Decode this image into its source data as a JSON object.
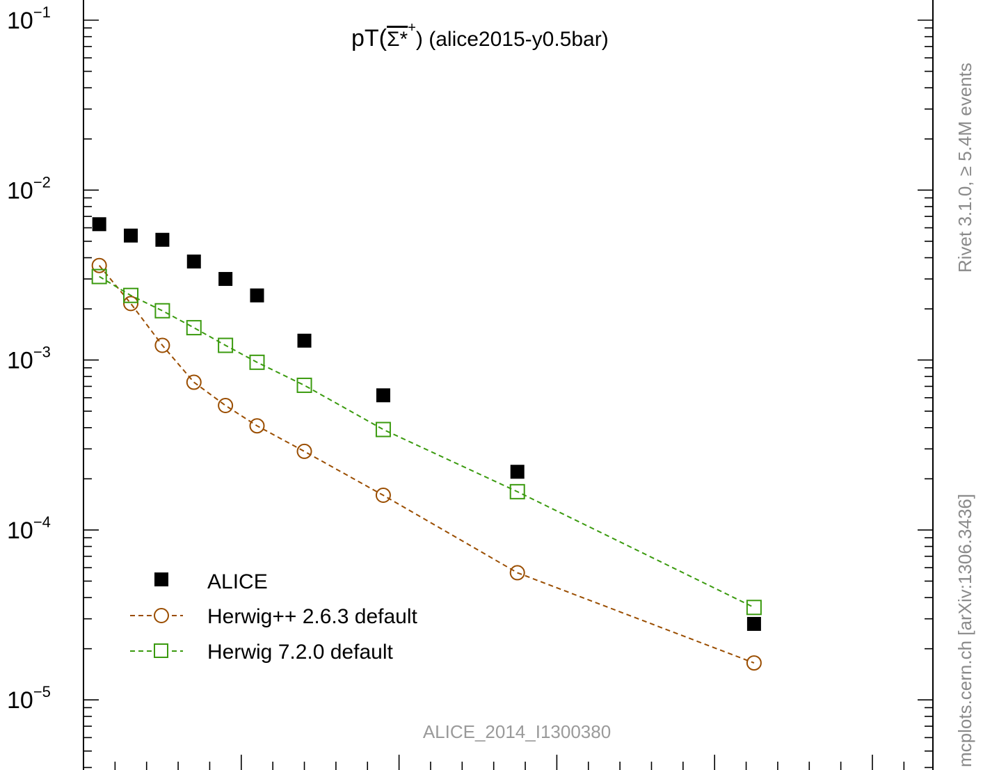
{
  "chart_data": {
    "type": "scatter",
    "title": "pT(Σ*⁺) (alice2015-y0.5bar)",
    "title_main": "pT(",
    "title_particle": "Σ*",
    "title_superscript": "+",
    "title_tail": ") (alice2015-y0.5bar)",
    "xlabel": "",
    "ylabel": "",
    "y_scale": "log",
    "ylim": [
      4e-06,
      0.12
    ],
    "xlim": [
      0.0,
      5.3
    ],
    "y_tick_labels": [
      {
        "value": 0.1,
        "base": "10",
        "exp": "−1"
      },
      {
        "value": 0.01,
        "base": "10",
        "exp": "−2"
      },
      {
        "value": 0.001,
        "base": "10",
        "exp": "−3"
      },
      {
        "value": 0.0001,
        "base": "10",
        "exp": "−4"
      },
      {
        "value": 1e-05,
        "base": "10",
        "exp": "−5"
      }
    ],
    "x_major_ticks": [
      0.0,
      1.0,
      2.0,
      3.0,
      4.0,
      5.0
    ],
    "x_minor_ticks": [
      0.2,
      0.4,
      0.6,
      0.8,
      1.2,
      1.4,
      1.6,
      1.8,
      2.2,
      2.4,
      2.6,
      2.8,
      3.2,
      3.4,
      3.6,
      3.8,
      4.2,
      4.4,
      4.6,
      4.8,
      5.2
    ],
    "x": [
      0.1,
      0.3,
      0.5,
      0.7,
      0.9,
      1.1,
      1.4,
      1.9,
      2.75,
      4.25
    ],
    "series": [
      {
        "name": "ALICE",
        "marker": "filled-square",
        "line": "none",
        "color": "#000000",
        "values": [
          0.0063,
          0.0054,
          0.0051,
          0.0038,
          0.003,
          0.0024,
          0.0013,
          0.00062,
          0.00022,
          2.8e-05
        ]
      },
      {
        "name": "Herwig++ 2.6.3 default",
        "marker": "open-circle",
        "line": "dashed",
        "color": "#9a4d00",
        "values": [
          0.0036,
          0.00215,
          0.00122,
          0.00074,
          0.00054,
          0.00041,
          0.00029,
          0.00016,
          5.6e-05,
          1.65e-05
        ]
      },
      {
        "name": "Herwig 7.2.0 default",
        "marker": "open-square",
        "line": "dashed",
        "color": "#3a9a0e",
        "values": [
          0.0031,
          0.0024,
          0.00195,
          0.00155,
          0.00122,
          0.00097,
          0.00071,
          0.00039,
          0.000168,
          3.5e-05
        ]
      }
    ],
    "legend_position": "bottom-left",
    "annotation": "ALICE_2014_I1300380",
    "grid": false
  },
  "side_labels": {
    "rivet": "Rivet 3.1.0, ≥ 5.4M events",
    "mcplots": "mcplots.cern.ch [arXiv:1306.3436]"
  }
}
